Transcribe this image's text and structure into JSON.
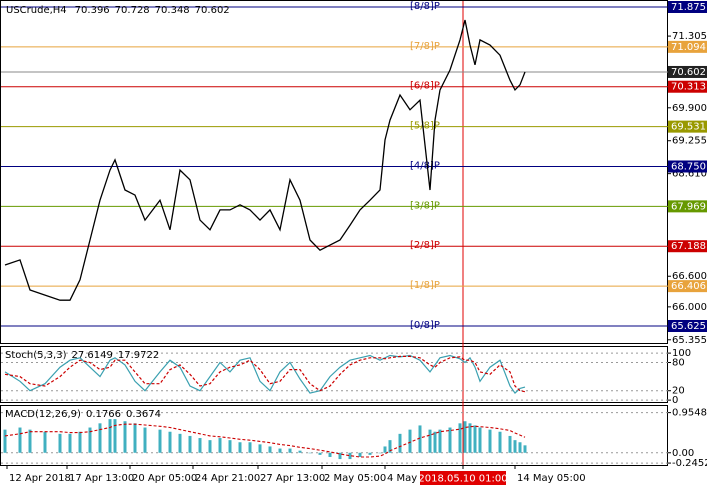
{
  "chart_data": [
    {
      "type": "line",
      "title": "USCrude,H4",
      "ohlc": [
        70.396,
        70.728,
        70.348,
        70.602
      ],
      "color": "#000000",
      "x": [
        0,
        3,
        5,
        8,
        11,
        13,
        15,
        17,
        19,
        21,
        22,
        24,
        26,
        28,
        31,
        33,
        35,
        37,
        39,
        41,
        43,
        45,
        47,
        49,
        51,
        53,
        55,
        57,
        59,
        61,
        63,
        65,
        67,
        69,
        71,
        73,
        75,
        76,
        77,
        79,
        81,
        83,
        85,
        86,
        87,
        89,
        91,
        92,
        93,
        94,
        95,
        97,
        99,
        101,
        102,
        103,
        104
      ],
      "values": [
        66.82,
        66.92,
        66.33,
        66.23,
        66.13,
        66.13,
        66.53,
        67.31,
        68.09,
        68.68,
        68.88,
        68.29,
        68.19,
        67.7,
        68.09,
        67.51,
        68.68,
        68.49,
        67.7,
        67.51,
        67.9,
        67.9,
        68.0,
        67.9,
        67.7,
        67.9,
        67.51,
        68.49,
        68.09,
        67.31,
        67.11,
        67.21,
        67.31,
        67.6,
        67.9,
        68.09,
        68.29,
        69.27,
        69.66,
        70.15,
        69.86,
        70.05,
        68.29,
        69.66,
        70.25,
        70.64,
        71.23,
        71.62,
        71.13,
        70.74,
        71.23,
        71.13,
        70.93,
        70.44,
        70.25,
        70.35,
        70.602
      ],
      "xlim": [
        -1,
        132.6
      ],
      "xticks": [
        {
          "value": 0.4,
          "label": "12 Apr 2018"
        },
        {
          "value": 12.4,
          "label": "17 Apr 13:00"
        },
        {
          "value": 25,
          "label": "20 Apr 05:00"
        },
        {
          "value": 37.6,
          "label": "24 Apr 21:00"
        },
        {
          "value": 50.6,
          "label": "27 Apr 13:00"
        },
        {
          "value": 63.4,
          "label": "2 May 05:00"
        },
        {
          "value": 76,
          "label": "4 May 21:00"
        },
        {
          "value": 91.6,
          "label": "2018.05.10 01:00"
        },
        {
          "value": 102,
          "label": "14 May 05:00"
        }
      ],
      "crosshair": {
        "x": 91.6,
        "color": "#e00000"
      },
      "ylim": [
        65.292,
        72.012
      ],
      "yticks": [
        {
          "value": 71.305,
          "label": "71.305"
        },
        {
          "value": 69.9,
          "label": "69.900"
        },
        {
          "value": 69.255,
          "label": "69.255"
        },
        {
          "value": 68.61,
          "label": "68.610"
        },
        {
          "value": 66.6,
          "label": "66.600"
        },
        {
          "value": 66.0,
          "label": "66.000"
        },
        {
          "value": 65.355,
          "label": "65.355"
        }
      ],
      "murrey": {
        "labels": [
          "[8/8]P",
          "[7/8]P",
          "[6/8]P",
          "[5/8]P",
          "[4/8]P",
          "[3/8]P",
          "[2/8]P",
          "[1/8]P",
          "[0/8]P"
        ],
        "values": [
          71.875,
          71.094,
          70.313,
          69.531,
          68.75,
          67.969,
          67.188,
          66.406,
          65.625
        ],
        "value_labels": [
          "71.875",
          "71.094",
          "70.313",
          "69.531",
          "68.750",
          "67.969",
          "67.188",
          "66.406",
          "65.625"
        ],
        "colors": [
          "#000080",
          "#e8a33c",
          "#cc0000",
          "#999900",
          "#000080",
          "#669900",
          "#cc0000",
          "#e8a33c",
          "#000080"
        ]
      }
    },
    {
      "type": "line",
      "title": "Stoch(5,3,3)",
      "header": [
        27.6149,
        17.9722
      ],
      "ylim": [
        -4,
        113
      ],
      "yticks": [
        0,
        20,
        80,
        100
      ],
      "series": [
        {
          "color": "#3aa0b0",
          "dash": false,
          "values": [
            60,
            40,
            20,
            35,
            70,
            85,
            90,
            70,
            50,
            85,
            90,
            75,
            40,
            20,
            60,
            85,
            70,
            30,
            20,
            50,
            80,
            60,
            85,
            90,
            40,
            20,
            60,
            80,
            45,
            15,
            20,
            50,
            70,
            85,
            90,
            95,
            85,
            90,
            95,
            92,
            95,
            85,
            60,
            75,
            90,
            95,
            88,
            80,
            90,
            70,
            40,
            70,
            85,
            30,
            15,
            25,
            27.6149
          ]
        },
        {
          "color": "#cc0000",
          "dash": true,
          "values": [
            55,
            50,
            35,
            30,
            50,
            70,
            85,
            80,
            65,
            70,
            85,
            85,
            60,
            35,
            35,
            65,
            75,
            55,
            30,
            35,
            60,
            70,
            75,
            85,
            65,
            35,
            40,
            65,
            65,
            35,
            20,
            30,
            55,
            75,
            85,
            90,
            90,
            88,
            90,
            93,
            93,
            90,
            75,
            70,
            80,
            90,
            92,
            85,
            85,
            80,
            60,
            55,
            75,
            60,
            30,
            20,
            17.9722
          ]
        }
      ]
    },
    {
      "type": "bar",
      "title": "MACD(12,26,9)",
      "header": [
        0.1766,
        0.3674
      ],
      "ylim": [
        -0.291,
        1.136
      ],
      "yticks": [
        0.9548,
        {
          "value": 0,
          "label": "0.00"
        },
        -0.2452
      ],
      "color": "#40b0c0",
      "values": [
        0.55,
        0.6,
        0.55,
        0.5,
        0.45,
        0.45,
        0.5,
        0.6,
        0.7,
        0.8,
        0.8,
        0.75,
        0.7,
        0.6,
        0.55,
        0.5,
        0.45,
        0.4,
        0.35,
        0.3,
        0.35,
        0.3,
        0.25,
        0.25,
        0.2,
        0.15,
        0.1,
        0.1,
        0.05,
        0,
        -0.05,
        -0.1,
        -0.15,
        -0.15,
        -0.1,
        -0.05,
        0,
        0.15,
        0.3,
        0.45,
        0.55,
        0.65,
        0.55,
        0.5,
        0.55,
        0.6,
        0.7,
        0.75,
        0.7,
        0.65,
        0.6,
        0.55,
        0.5,
        0.4,
        0.3,
        0.25,
        0.1766
      ],
      "line": {
        "color": "#cc0000",
        "values": [
          0.4,
          0.45,
          0.5,
          0.5,
          0.5,
          0.48,
          0.48,
          0.5,
          0.55,
          0.6,
          0.65,
          0.68,
          0.68,
          0.66,
          0.63,
          0.6,
          0.55,
          0.5,
          0.45,
          0.4,
          0.38,
          0.35,
          0.32,
          0.3,
          0.27,
          0.24,
          0.2,
          0.17,
          0.13,
          0.1,
          0.06,
          0.02,
          -0.03,
          -0.07,
          -0.1,
          -0.1,
          -0.08,
          -0.03,
          0.05,
          0.15,
          0.25,
          0.35,
          0.42,
          0.46,
          0.5,
          0.53,
          0.56,
          0.6,
          0.62,
          0.63,
          0.62,
          0.6,
          0.57,
          0.53,
          0.47,
          0.42,
          0.3674
        ]
      }
    }
  ]
}
